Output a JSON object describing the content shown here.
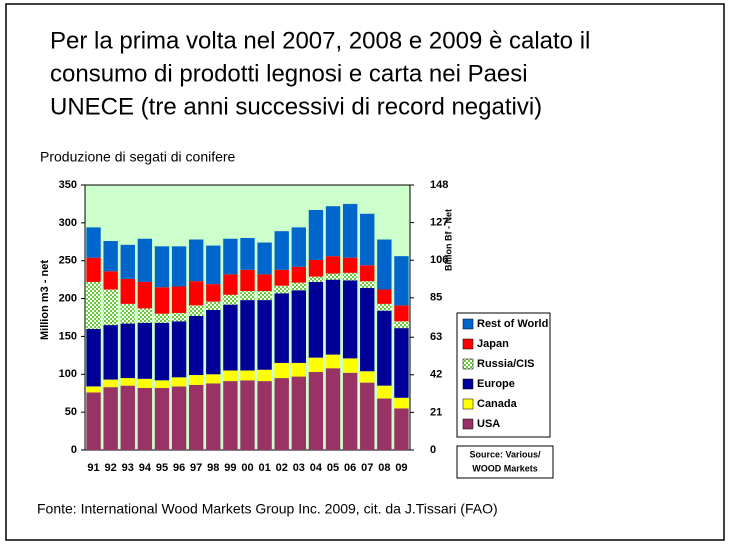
{
  "title": [
    "Per la prima volta nel 2007, 2008 e 2009 è calato il",
    "consumo di prodotti legnosi e carta nei Paesi",
    "UNECE (tre anni successivi di record negativi)"
  ],
  "footer": "Fonte: International Wood Markets Group Inc. 2009, cit. da J.Tissari (FAO)",
  "chart_data": {
    "type": "stacked_bar",
    "title": "Produzione di segati di conifere",
    "y_label": "Million m3 - net",
    "y2_label": "Billion Bf - Net",
    "source": [
      "Source: Various/",
      "WOOD Markets"
    ],
    "categories": [
      "91",
      "92",
      "93",
      "94",
      "95",
      "96",
      "97",
      "98",
      "99",
      "00",
      "01",
      "02",
      "03",
      "04",
      "05",
      "06",
      "07",
      "08",
      "09"
    ],
    "series": [
      {
        "name": "USA",
        "color": "#993366",
        "values": [
          76,
          83,
          85,
          82,
          82,
          84,
          86,
          88,
          91,
          92,
          91,
          95,
          97,
          103,
          108,
          102,
          89,
          68,
          55
        ]
      },
      {
        "name": "Canada",
        "color": "#ffff00",
        "values": [
          8,
          10,
          10,
          12,
          10,
          12,
          13,
          12,
          14,
          13,
          15,
          20,
          18,
          19,
          18,
          19,
          15,
          17,
          14
        ]
      },
      {
        "name": "Europe",
        "color": "#000099",
        "values": [
          76,
          72,
          72,
          74,
          76,
          74,
          78,
          85,
          87,
          93,
          92,
          92,
          96,
          100,
          99,
          103,
          110,
          99,
          92
        ]
      },
      {
        "name": "Russia/CIS",
        "color": "#66cc33",
        "values": [
          62,
          47,
          26,
          19,
          12,
          11,
          14,
          11,
          13,
          12,
          12,
          10,
          10,
          7,
          8,
          10,
          9,
          9,
          9
        ]
      },
      {
        "name": "Japan",
        "color": "#ff0000",
        "values": [
          32,
          24,
          33,
          35,
          35,
          35,
          32,
          23,
          27,
          28,
          22,
          21,
          21,
          22,
          23,
          20,
          21,
          19,
          21
        ]
      },
      {
        "name": "Rest of World",
        "color": "#0066cc",
        "values": [
          40,
          40,
          45,
          57,
          54,
          53,
          55,
          51,
          47,
          42,
          42,
          51,
          52,
          66,
          66,
          71,
          68,
          66,
          65
        ]
      }
    ],
    "ylim": [
      0,
      350
    ],
    "yticks": [
      0,
      50,
      100,
      150,
      200,
      250,
      300,
      350
    ],
    "y2lim": [
      0,
      148
    ],
    "y2ticks": [
      0,
      21,
      42,
      63,
      85,
      106,
      127,
      148
    ],
    "background": "#ccffcc"
  }
}
